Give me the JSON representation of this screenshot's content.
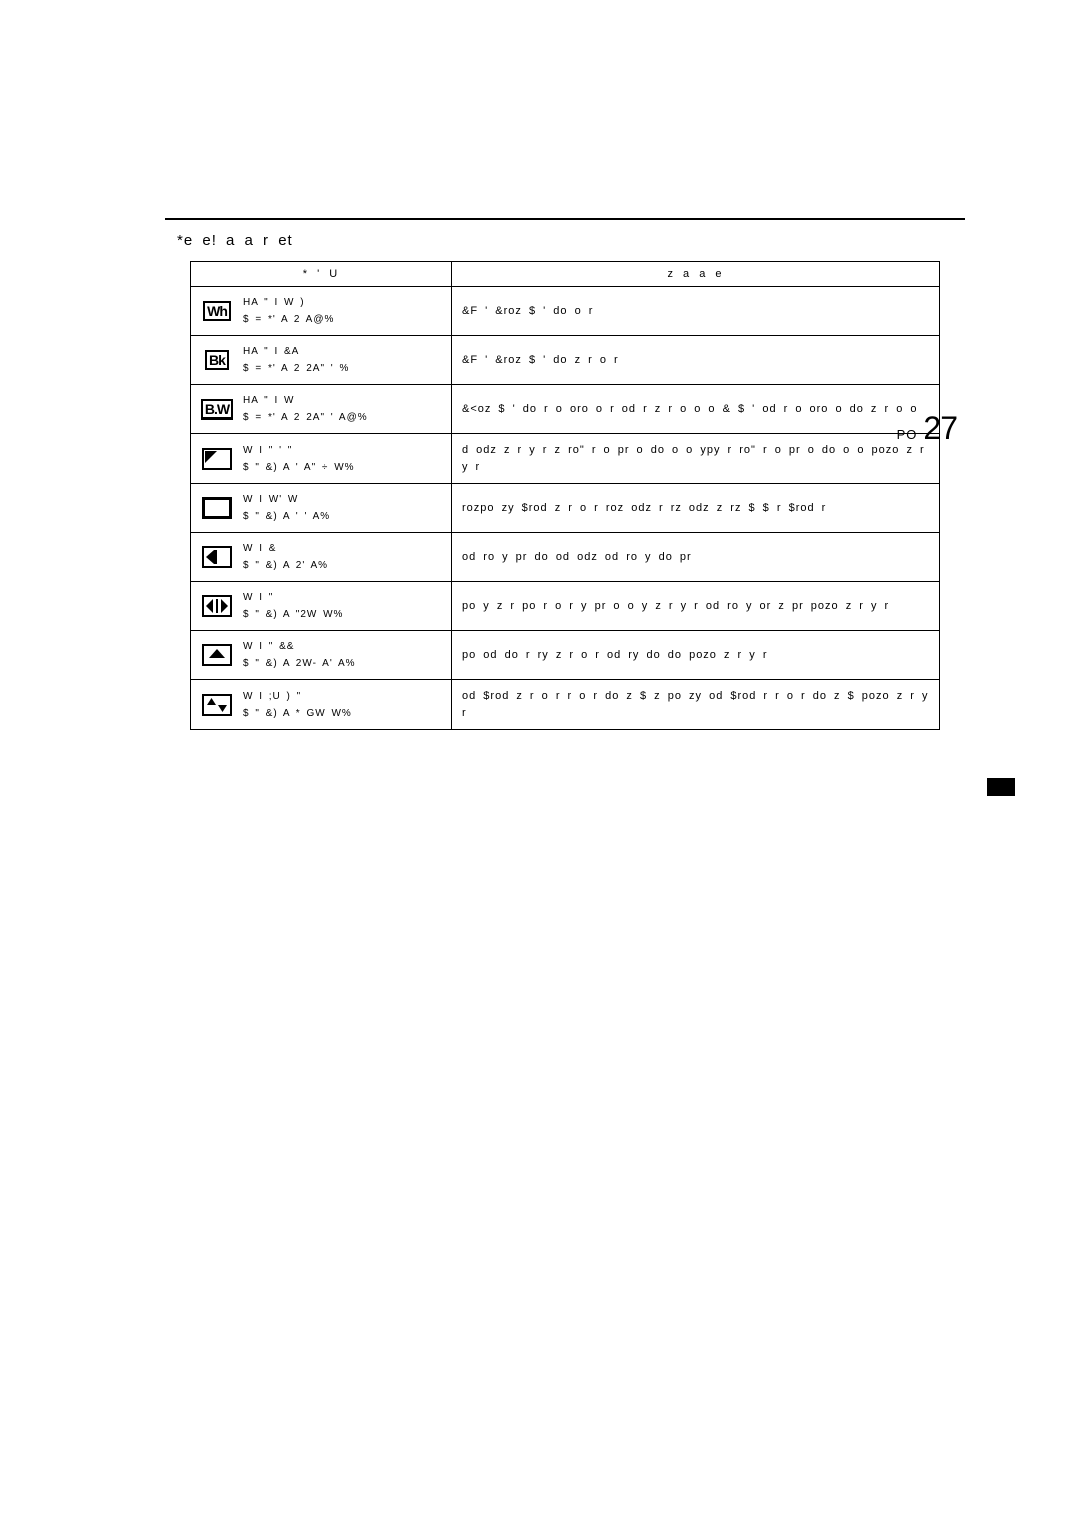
{
  "page_prefix": "PO",
  "page_number": "27",
  "title": "*e   e!  a  a  r    et",
  "headers": {
    "col1": "*  '  U",
    "col2": "z a a    e"
  },
  "rows": [
    {
      "icon": "WH",
      "name1": "HA  \" I  W )",
      "name2": "$ =   *'  A 2    A@%",
      "desc": "&F     '    &roz  $    ' do       o  r"
    },
    {
      "icon": "BK",
      "name1": "HA  \" I  &A",
      "name2": "$ =   *'  A 2  2A\" '  %",
      "desc": "&F     '    &roz  $    ' do  z r  o  r"
    },
    {
      "icon": "BW",
      "name1": "HA  \" I    W",
      "name2": "$ =   *'  A 2  2A\" '    A@%",
      "desc": "&<oz  $  '       do  r   o oro   o   r     od  r     z  r o         o     o & $       '     od  r   o oro   o do  z r o       o"
    },
    {
      "icon": "corner",
      "name1": "W   I   \" ' \"",
      "name2": "$ \" &)  A ' A\"  ÷    W%",
      "desc": "   d    odz     z r y  r  z   ro\"      r  o pr     o    do    o    o          ypy       r     ro\"     r   o   pr    o    do    o    o pozo           z r y  r"
    },
    {
      "icon": "square",
      "name1": "W   I W'    W",
      "name2": "$ \" &)  A    ' ' A%",
      "desc": "   rozpo zy        $rod    z r  o  r      roz   odz      r     rz              odz  z  rz       $    $         r   $rod    r"
    },
    {
      "icon": "left",
      "name1": "W   I  &",
      "name2": "$ \" &)  A    2' A%",
      "desc": "           od    ro y pr     do         od   odz od    ro y       do pr"
    },
    {
      "icon": "lr",
      "name1": "W   I   \"",
      "name2": "$ \" &)  A  \"2W  W%",
      "desc": "   po          y  z r  po      r   o     r  y    pr    o    o       y  z r y r            od    ro y   or z pr    pozo           z r y r"
    },
    {
      "icon": "up",
      "name1": "W   I   \" &&",
      "name2": "$ \" &)  A 2W- A' A%",
      "desc": "   po         od do       r     ry z r  o  r              od    ry do do    pozo           z r y r"
    },
    {
      "icon": "updown",
      "name1": "W   I   ;U )  \"",
      "name2": "$ \" &)  A * GW  W%",
      "desc": "          od $rod      z r  o  r        r        o  r   do    z $       z     po  zy    od $rod    r      r     o   r    do    z $    pozo           z r y r"
    }
  ]
}
